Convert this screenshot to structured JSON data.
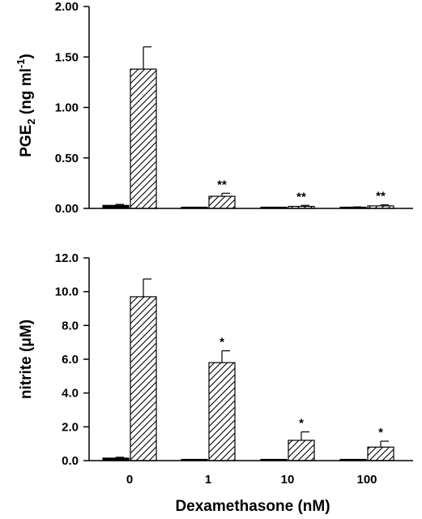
{
  "xlabel": "Dexamethasone (nM)",
  "colors": {
    "ink": "#000000",
    "background": "#ffffff"
  },
  "chart_data": [
    {
      "type": "bar",
      "categories": [
        "0",
        "1",
        "10",
        "100"
      ],
      "ylabel_main": "PGE",
      "ylabel_sub": "2",
      "ylabel_units": " (ng ml",
      "ylabel_exp": "-1",
      "ylabel_close": ")",
      "ylim": [
        0,
        2.0
      ],
      "yticks": [
        "0.00",
        "0.50",
        "1.00",
        "1.50",
        "2.00"
      ],
      "series": [
        {
          "fill": "solid",
          "values": [
            0.03,
            0.005,
            0.005,
            0.01
          ],
          "errors": [
            0.01,
            0,
            0,
            0.005
          ]
        },
        {
          "fill": "hatched",
          "values": [
            1.38,
            0.12,
            0.02,
            0.025
          ],
          "errors": [
            0.22,
            0.03,
            0.01,
            0.01
          ]
        }
      ],
      "annotations": [
        "",
        "**",
        "**",
        "**"
      ]
    },
    {
      "type": "bar",
      "categories": [
        "0",
        "1",
        "10",
        "100"
      ],
      "ylabel": "nitrite (μM)",
      "ylim": [
        0,
        12.0
      ],
      "yticks": [
        "0.0",
        "2.0",
        "4.0",
        "6.0",
        "8.0",
        "10.0",
        "12.0"
      ],
      "series": [
        {
          "fill": "solid",
          "values": [
            0.15,
            0.05,
            0.05,
            0.05
          ],
          "errors": [
            0.05,
            0,
            0,
            0
          ]
        },
        {
          "fill": "hatched",
          "values": [
            9.7,
            5.8,
            1.2,
            0.8
          ],
          "errors": [
            1.05,
            0.7,
            0.5,
            0.35
          ]
        }
      ],
      "annotations": [
        "",
        "*",
        "*",
        "*"
      ]
    }
  ]
}
